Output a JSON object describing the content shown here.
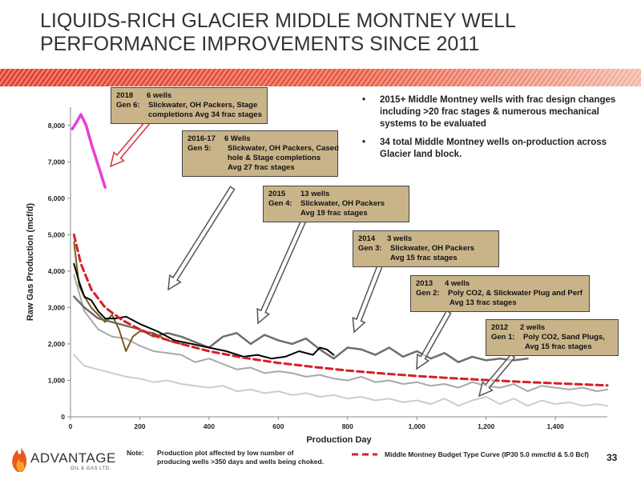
{
  "title": "LIQUIDS-RICH GLACIER MIDDLE MONTNEY WELL PERFORMANCE IMPROVEMENTS SINCE 2011",
  "bullets": [
    "2015+ Middle Montney wells with frac design changes including >20 frac stages & numerous mechanical systems to be evaluated",
    "34 total Middle Montney wells on-production across Glacier land block."
  ],
  "callouts": [
    {
      "line1_a": "2018",
      "line1_b": "6 wells",
      "line2_a": "Gen 6:",
      "line2_b": "Slickwater, OH Packers, Stage",
      "line3": "completions Avg 34 frac stages",
      "arrow_color": "#d9303a"
    },
    {
      "line1_a": "2016-17",
      "line1_b": "6 Wells",
      "line2_a": "Gen 5:",
      "line2_b": "Slickwater, OH Packers, Cased",
      "line3": "hole & Stage completions",
      "line4": "Avg 27 frac stages"
    },
    {
      "line1_a": "2015",
      "line1_b": "13 wells",
      "line2_a": "Gen 4:",
      "line2_b": "Slickwater, OH Packers",
      "line3": "Avg 19 frac stages"
    },
    {
      "line1_a": "2014",
      "line1_b": "3 wells",
      "line2_a": "Gen 3:",
      "line2_b": "Slickwater, OH Packers",
      "line3": "Avg 15 frac stages"
    },
    {
      "line1_a": "2013",
      "line1_b": "4 wells",
      "line2_a": "Gen 2:",
      "line2_b": "Poly CO2,  & Slickwater  Plug and Perf",
      "line3": "Avg 13 frac stages"
    },
    {
      "line1_a": "2012",
      "line1_b": "2 wells",
      "line2_a": "Gen 1:",
      "line2_b": "Poly CO2,  Sand Plugs,",
      "line3": "Avg 15 frac stages"
    }
  ],
  "note": {
    "label": "Note:",
    "text1": "Production plot affected by low number of",
    "text2": "producing wells  >350 days and wells being choked."
  },
  "legend_label": "Middle Montney Budget Type Curve (IP30 5.0 mmcf/d & 5.0 Bcf)",
  "page_number": "33",
  "logo": {
    "name": "ADVANTAGE",
    "sub": "OIL & GAS LTD."
  },
  "colors": {
    "banner": "#e23a2a",
    "callout_bg": "#c9b48a",
    "type_curve": "#d42027",
    "gen6": "#e83ed6",
    "gen5": "#000000",
    "gen4": "#7a5c1e",
    "gen3": "#555555",
    "gen2": "#a0a0a0",
    "gen1": "#c8c8c8"
  },
  "chart_data": {
    "type": "line",
    "xlabel": "Production Day",
    "ylabel": "Raw Gas Production (mcf/d)",
    "xlim": [
      0,
      1550
    ],
    "ylim": [
      0,
      8500
    ],
    "xticks": [
      0,
      200,
      400,
      600,
      800,
      1000,
      1200,
      1400
    ],
    "xtick_labels": [
      "0",
      "200",
      "400",
      "600",
      "800",
      "1,000",
      "1,200",
      "1,400"
    ],
    "yticks": [
      0,
      1000,
      2000,
      3000,
      4000,
      5000,
      6000,
      7000,
      8000
    ],
    "ytick_labels": [
      "0",
      "1,000",
      "2,000",
      "3,000",
      "4,000",
      "5,000",
      "6,000",
      "7,000",
      "8,000"
    ],
    "series": [
      {
        "name": "Gen 6",
        "color": "#e83ed6",
        "width": 3.5,
        "dash": "",
        "x": [
          5,
          15,
          30,
          45,
          60,
          80,
          100
        ],
        "y": [
          7900,
          8050,
          8300,
          8000,
          7500,
          6900,
          6300
        ]
      },
      {
        "name": "Gen 5",
        "color": "#000000",
        "width": 2,
        "dash": "",
        "x": [
          10,
          25,
          40,
          60,
          80,
          100,
          130,
          160,
          200,
          250,
          300,
          350,
          400,
          450,
          500,
          540,
          580,
          620,
          660,
          700,
          720,
          740,
          760
        ],
        "y": [
          4200,
          3700,
          3300,
          3200,
          2900,
          2700,
          2700,
          2750,
          2550,
          2350,
          2100,
          2000,
          1900,
          1800,
          1650,
          1700,
          1600,
          1650,
          1800,
          1700,
          1900,
          1850,
          1700
        ]
      },
      {
        "name": "Gen 4",
        "color": "#7a5c1e",
        "width": 2,
        "dash": "",
        "x": [
          10,
          25,
          40,
          60,
          80,
          100,
          120,
          140,
          160,
          180,
          200,
          240,
          280,
          320
        ],
        "y": [
          4800,
          3600,
          3300,
          3000,
          2800,
          2600,
          2800,
          2400,
          1800,
          2200,
          2350,
          2300,
          2100,
          2000
        ]
      },
      {
        "name": "Gen 3",
        "color": "#6e6e6e",
        "width": 2.5,
        "dash": "",
        "x": [
          10,
          40,
          80,
          120,
          160,
          200,
          240,
          280,
          320,
          360,
          400,
          440,
          480,
          520,
          560,
          600,
          640,
          680,
          720,
          760,
          800,
          840,
          880,
          920,
          960,
          1000,
          1040,
          1080,
          1120,
          1160,
          1200,
          1240,
          1280,
          1320
        ],
        "y": [
          3300,
          3000,
          2700,
          2600,
          2500,
          2400,
          2200,
          2300,
          2200,
          2050,
          1900,
          2200,
          2300,
          2000,
          2250,
          2100,
          2000,
          2150,
          1850,
          1600,
          1900,
          1850,
          1700,
          1900,
          1650,
          1800,
          1600,
          1750,
          1500,
          1650,
          1550,
          1600,
          1550,
          1600
        ]
      },
      {
        "name": "Gen 2",
        "color": "#a8a8a8",
        "width": 2,
        "dash": "",
        "x": [
          10,
          40,
          80,
          120,
          160,
          200,
          240,
          280,
          320,
          360,
          400,
          440,
          480,
          520,
          560,
          600,
          640,
          680,
          720,
          760,
          800,
          840,
          880,
          920,
          960,
          1000,
          1040,
          1080,
          1120,
          1160,
          1200,
          1240,
          1280,
          1320,
          1360,
          1400,
          1440,
          1480,
          1520,
          1550
        ],
        "y": [
          3900,
          2900,
          2400,
          2200,
          2150,
          1950,
          1800,
          1750,
          1700,
          1500,
          1600,
          1450,
          1300,
          1350,
          1200,
          1250,
          1200,
          1100,
          1150,
          1050,
          1000,
          1100,
          950,
          1000,
          900,
          950,
          850,
          900,
          800,
          950,
          850,
          800,
          900,
          700,
          850,
          800,
          750,
          800,
          700,
          750
        ]
      },
      {
        "name": "Gen 1",
        "color": "#cccccc",
        "width": 2,
        "dash": "",
        "x": [
          10,
          40,
          80,
          120,
          160,
          200,
          240,
          280,
          320,
          360,
          400,
          440,
          480,
          520,
          560,
          600,
          640,
          680,
          720,
          760,
          800,
          840,
          880,
          920,
          960,
          1000,
          1040,
          1080,
          1120,
          1160,
          1200,
          1240,
          1280,
          1320,
          1360,
          1400,
          1440,
          1480,
          1520,
          1550
        ],
        "y": [
          1700,
          1400,
          1300,
          1200,
          1100,
          1050,
          950,
          1000,
          900,
          850,
          800,
          850,
          700,
          750,
          650,
          700,
          600,
          650,
          550,
          600,
          500,
          550,
          450,
          500,
          400,
          450,
          350,
          500,
          300,
          450,
          550,
          350,
          500,
          300,
          450,
          350,
          400,
          300,
          350,
          300
        ]
      },
      {
        "name": "Middle Montney Budget Type Curve (IP30 5.0 mmcf/d & 5.0 Bcf)",
        "color": "#d42027",
        "width": 3,
        "dash": "8,5",
        "x": [
          10,
          30,
          60,
          100,
          150,
          200,
          250,
          300,
          400,
          500,
          600,
          700,
          800,
          900,
          1000,
          1100,
          1200,
          1300,
          1400,
          1500,
          1550
        ],
        "y": [
          5000,
          4200,
          3500,
          3000,
          2650,
          2400,
          2200,
          2050,
          1800,
          1620,
          1480,
          1370,
          1270,
          1190,
          1120,
          1060,
          1010,
          960,
          920,
          880,
          860
        ]
      }
    ]
  }
}
